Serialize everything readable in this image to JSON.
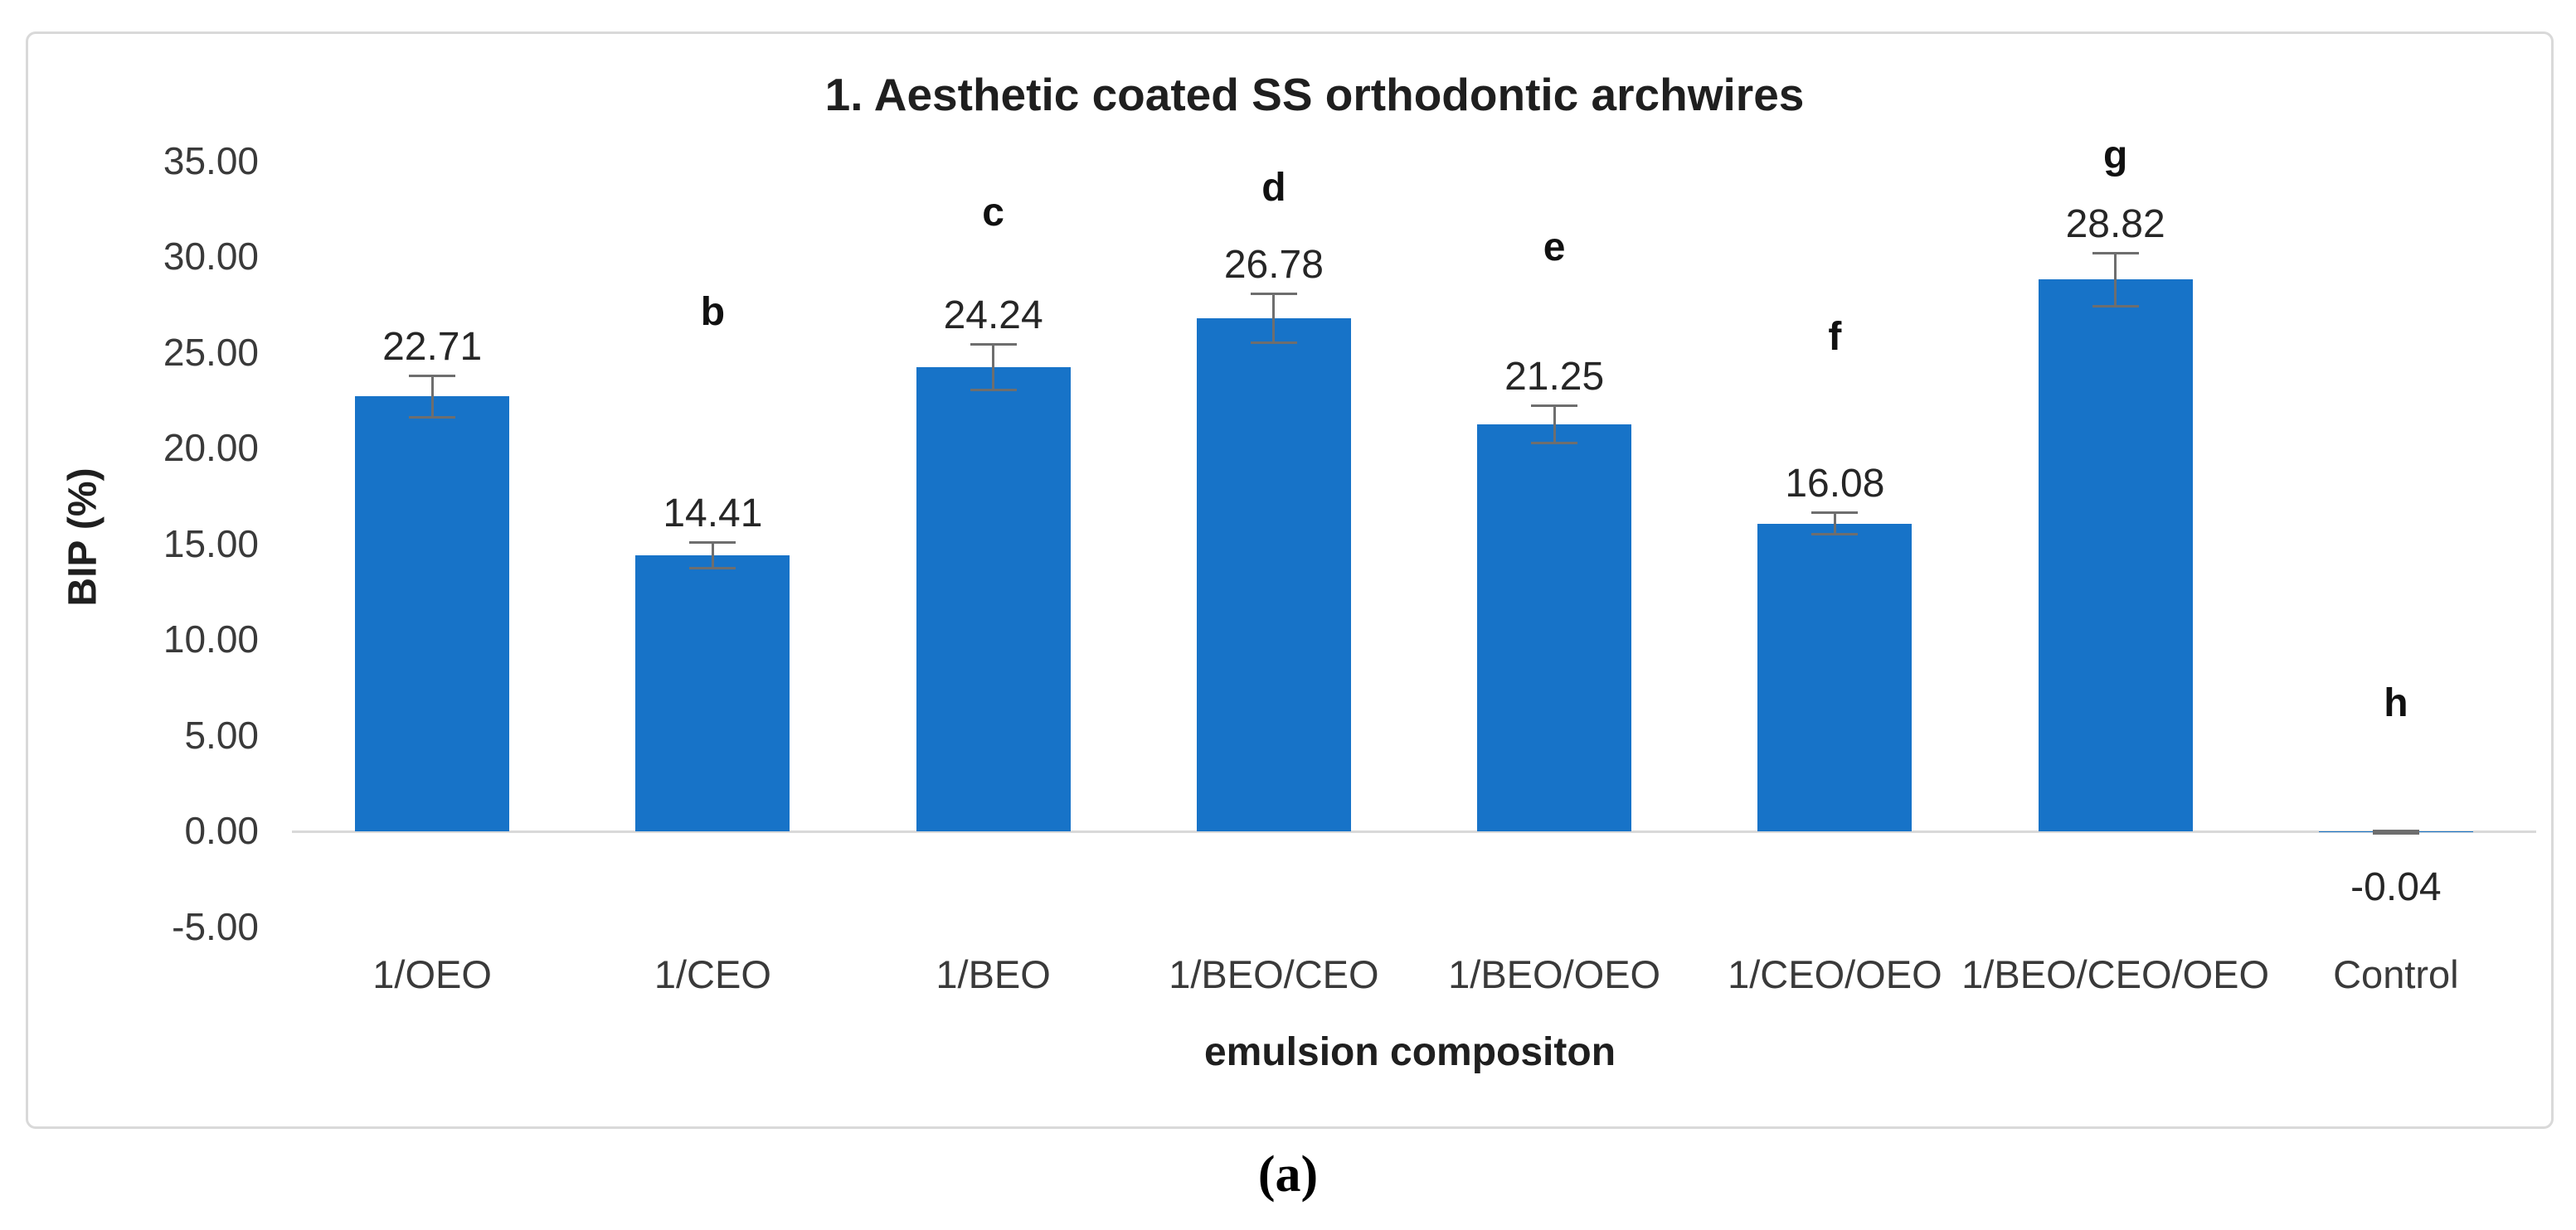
{
  "figure": {
    "caption": "(a)"
  },
  "chart_data": {
    "type": "bar",
    "title": "1. Aesthetic coated SS orthodontic archwires",
    "xlabel": "emulsion compositon",
    "ylabel": "BIP (%)",
    "ylim": [
      -5,
      35
    ],
    "grid": false,
    "legend": false,
    "ytick_values": [
      35,
      30,
      25,
      20,
      15,
      10,
      5,
      0,
      -5
    ],
    "ytick_labels": [
      "35.00",
      "30.00",
      "25.00",
      "20.00",
      "15.00",
      "10.00",
      "5.00",
      "0.00",
      "-5.00"
    ],
    "categories": [
      "1/OEO",
      "1/CEO",
      "1/BEO",
      "1/BEO/CEO",
      "1/BEO/OEO",
      "1/CEO/OEO",
      "1/BEO/CEO/OEO",
      "Control"
    ],
    "values": [
      22.71,
      14.41,
      24.24,
      26.78,
      21.25,
      16.08,
      28.82,
      -0.04
    ],
    "value_labels": [
      "22.71",
      "14.41",
      "24.24",
      "26.78",
      "21.25",
      "16.08",
      "28.82",
      "-0.04"
    ],
    "errors": [
      1.1,
      0.7,
      1.2,
      1.3,
      1.0,
      0.6,
      1.4,
      0.08
    ],
    "sig_letters": [
      "",
      "b",
      "c",
      "d",
      "e",
      "f",
      "g",
      "h"
    ],
    "sig_letter_y_values": [
      null,
      27.0,
      32.2,
      33.5,
      30.4,
      25.7,
      35.2,
      6.6
    ],
    "colors": {
      "bar": "#1773C8",
      "error_bar": "#6E6E6E",
      "axis_line": "#D9D9D9",
      "frame_border": "#D9D9D9"
    }
  }
}
